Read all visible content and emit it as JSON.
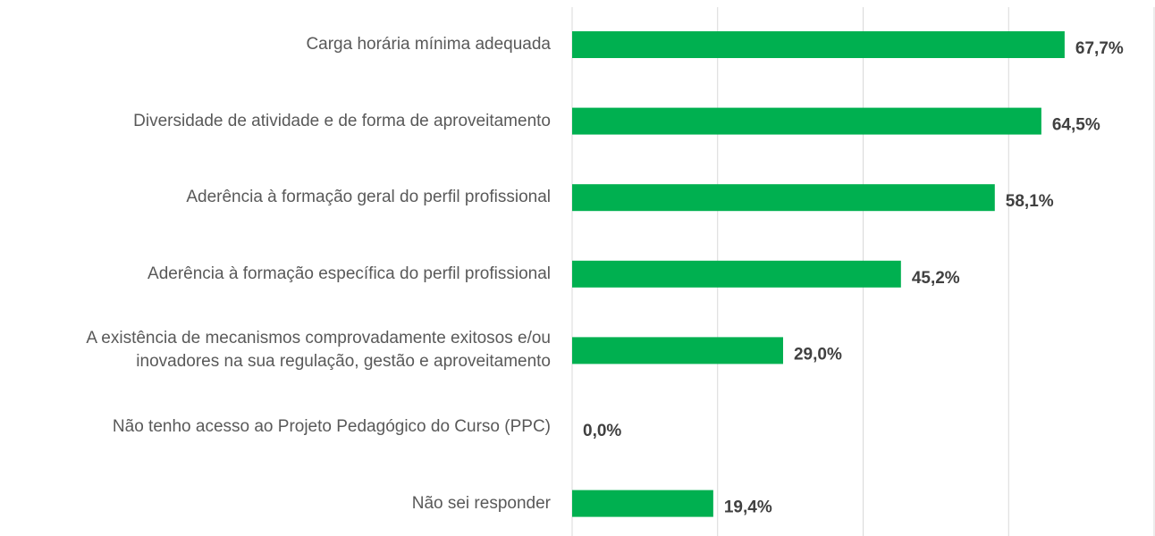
{
  "chart_data": {
    "type": "hbar",
    "categories": [
      "Carga horária mínima adequada",
      "Diversidade de atividade e de forma de aproveitamento",
      "Aderência à formação  geral do perfil profissional",
      "Aderência à formação específica do perfil profissional",
      "A existência de mecanismos comprovadamente exitosos e/ou\ninovadores na sua regulação, gestão e aproveitamento",
      "Não tenho acesso ao Projeto Pedagógico do Curso (PPC)",
      "Não sei responder"
    ],
    "values": [
      67.7,
      64.5,
      58.1,
      45.2,
      29.0,
      0.0,
      19.4
    ],
    "value_labels": [
      "67,7%",
      "64,5%",
      "58,1%",
      "45,2%",
      "29,0%",
      "0,0%",
      "19,4%"
    ],
    "color": "#00b050",
    "xlim": [
      0,
      80
    ],
    "xticks": [
      0,
      20,
      40,
      60,
      80
    ],
    "grid": true
  }
}
